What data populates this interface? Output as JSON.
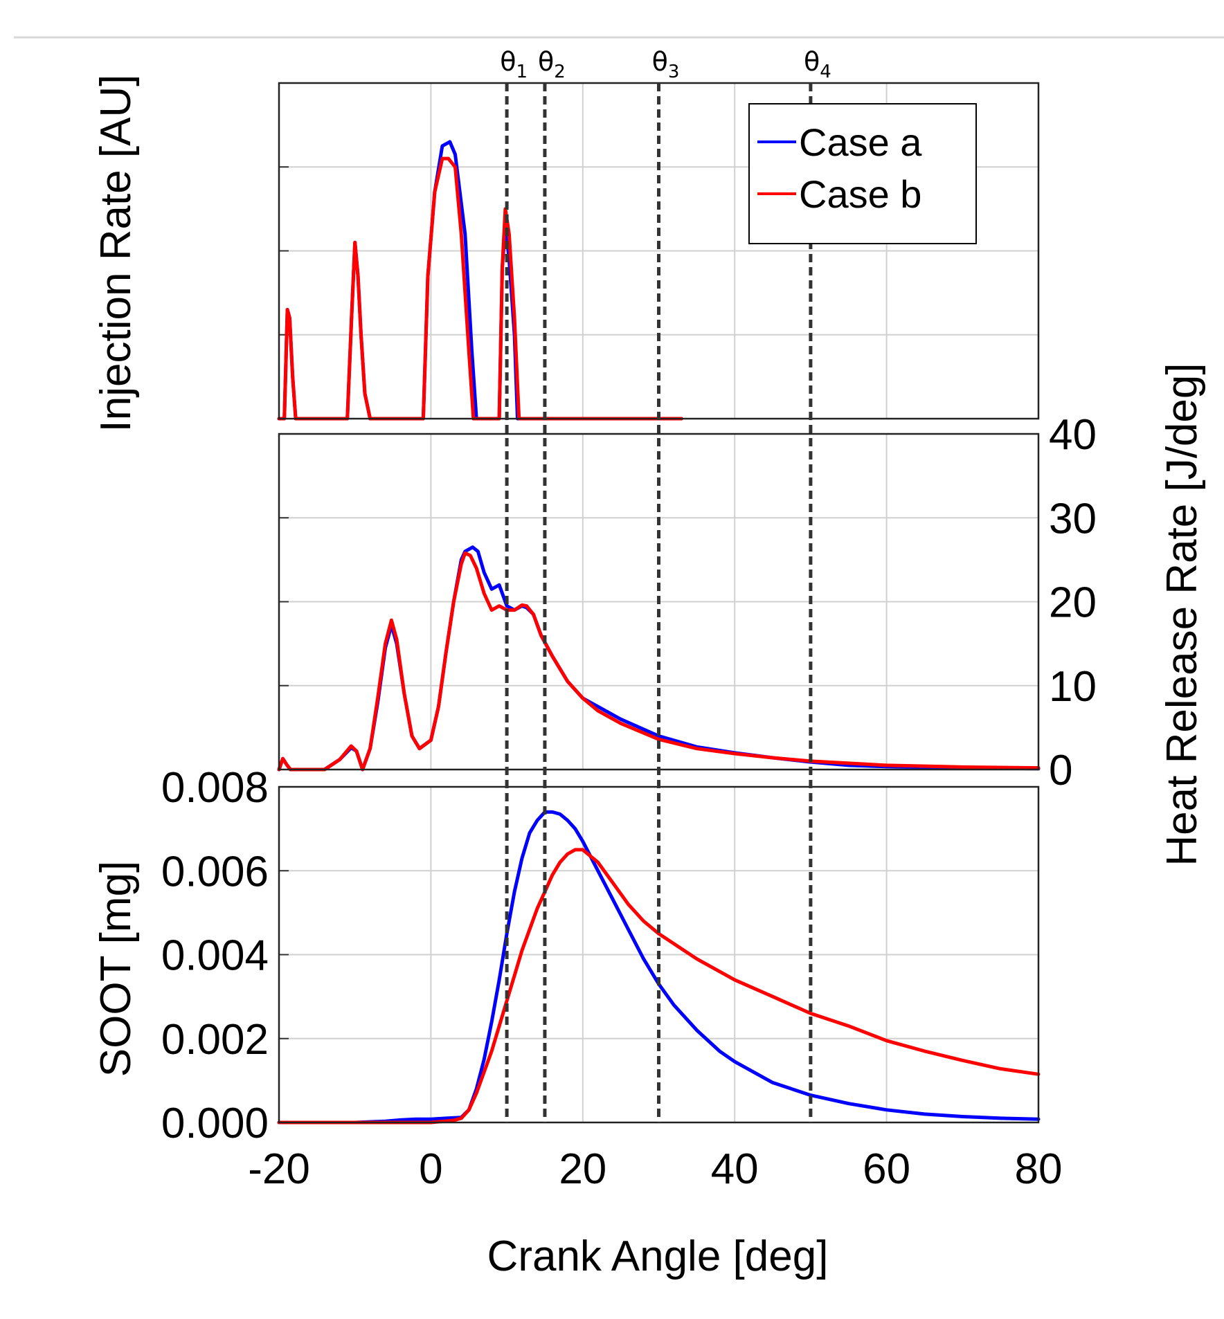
{
  "chart_data": [
    {
      "type": "line",
      "panel": "injection",
      "ylabel": "Injection Rate [AU]",
      "yticks_labeled": false,
      "xlim": [
        -20,
        80
      ],
      "ylim": [
        0,
        4
      ],
      "series": [
        {
          "name": "Case a",
          "color": "#0000ff",
          "x": [
            -20,
            -19.3,
            -18.9,
            -18.6,
            -18.2,
            -17.8,
            -11,
            -10.4,
            -10,
            -9.6,
            -9.2,
            -8.7,
            -8,
            -1,
            -0.4,
            0.5,
            1.5,
            2.5,
            3.2,
            4.5,
            5.4,
            6,
            9,
            9.4,
            9.8,
            10.3,
            11,
            11.4,
            33
          ],
          "y": [
            0,
            0,
            1.3,
            1.2,
            0.5,
            0,
            0,
            1.3,
            2.1,
            1.7,
            1.0,
            0.3,
            0,
            0,
            1.7,
            2.7,
            3.25,
            3.3,
            3.15,
            2.2,
            0.8,
            0,
            0,
            1.8,
            2.3,
            1.9,
            1.0,
            0,
            0
          ]
        },
        {
          "name": "Case b",
          "color": "#ff0000",
          "x": [
            -20,
            -19.3,
            -18.9,
            -18.6,
            -18.2,
            -17.8,
            -11,
            -10.4,
            -10,
            -9.6,
            -9.2,
            -8.7,
            -8,
            -1,
            -0.4,
            0.5,
            1.5,
            2.3,
            3.2,
            4,
            5,
            5.6,
            9,
            9.4,
            9.8,
            10.3,
            11,
            11.6,
            33
          ],
          "y": [
            0,
            0,
            1.3,
            1.2,
            0.5,
            0,
            0,
            1.3,
            2.1,
            1.7,
            1.0,
            0.3,
            0,
            0,
            1.7,
            2.7,
            3.1,
            3.1,
            3.0,
            2.2,
            0.8,
            0,
            0,
            1.8,
            2.5,
            2.2,
            1.2,
            0,
            0
          ]
        }
      ],
      "legend": {
        "placement": "top-right",
        "entries": [
          "Case a",
          "Case b"
        ]
      },
      "markers": [
        {
          "label": "θ",
          "sub": "1",
          "x": 10
        },
        {
          "label": "θ",
          "sub": "2",
          "x": 15
        },
        {
          "label": "θ",
          "sub": "3",
          "x": 30
        },
        {
          "label": "θ",
          "sub": "4",
          "x": 50
        }
      ]
    },
    {
      "type": "line",
      "panel": "heat-release",
      "ylabel": "Heat Release Rate [J/deg]",
      "xlim": [
        -20,
        80
      ],
      "ylim": [
        0,
        40
      ],
      "yticks": [
        0,
        10,
        20,
        30,
        40
      ],
      "series": [
        {
          "name": "Case a",
          "color": "#0000ff",
          "x": [
            -20,
            -19.5,
            -19,
            -18.5,
            -17,
            -14,
            -12,
            -10.5,
            -9.8,
            -9,
            -8,
            -7,
            -6,
            -5.2,
            -4.5,
            -3.5,
            -2.5,
            -1.5,
            0,
            1,
            2,
            3,
            4,
            4.5,
            5.5,
            6.2,
            7,
            8,
            9,
            10,
            11,
            12,
            12.6,
            13.5,
            14.5,
            16,
            18,
            20,
            22,
            25,
            30,
            35,
            40,
            45,
            50,
            55,
            60,
            70,
            80
          ],
          "y": [
            0,
            1.3,
            0.6,
            0,
            0,
            0,
            1.2,
            2.6,
            2.2,
            0,
            2.5,
            8,
            14.5,
            17.2,
            15,
            9,
            4,
            2.5,
            3.5,
            7.5,
            14,
            20,
            25,
            26,
            26.5,
            26,
            23.5,
            21.5,
            22,
            19.5,
            19,
            19.5,
            19.3,
            18.5,
            16,
            13.5,
            10.5,
            8.5,
            7.5,
            6,
            4.0,
            2.7,
            2.0,
            1.4,
            0.9,
            0.5,
            0.35,
            0.2,
            0.1
          ]
        },
        {
          "name": "Case b",
          "color": "#ff0000",
          "x": [
            -20,
            -19.5,
            -19,
            -18.5,
            -17,
            -14,
            -12,
            -10.5,
            -9.8,
            -9,
            -8,
            -7,
            -6,
            -5.2,
            -4.5,
            -3.5,
            -2.5,
            -1.5,
            0,
            1,
            2,
            3,
            4,
            4.5,
            5.2,
            6,
            7,
            8,
            9,
            10,
            11,
            12,
            12.6,
            13.5,
            14.5,
            16,
            18,
            20,
            22,
            25,
            30,
            35,
            40,
            45,
            50,
            55,
            60,
            70,
            80
          ],
          "y": [
            0,
            1.3,
            0.6,
            0,
            0,
            0,
            1.2,
            2.8,
            2.2,
            0,
            2.5,
            8.5,
            15,
            17.8,
            15.5,
            9,
            4,
            2.5,
            3.5,
            7.5,
            14,
            20,
            24.5,
            25.8,
            25.5,
            24,
            21,
            19,
            19.5,
            19,
            19,
            19.6,
            19.5,
            18.5,
            16,
            13.5,
            10.5,
            8.5,
            7,
            5.5,
            3.6,
            2.5,
            1.9,
            1.4,
            1.0,
            0.75,
            0.5,
            0.3,
            0.2
          ]
        }
      ]
    },
    {
      "type": "line",
      "panel": "soot",
      "ylabel": "SOOT [mg]",
      "xlabel": "Crank Angle [deg]",
      "xlim": [
        -20,
        80
      ],
      "ylim": [
        0,
        0.008
      ],
      "xticks": [
        -20,
        0,
        20,
        40,
        60,
        80
      ],
      "yticks": [
        "0.000",
        "0.002",
        "0.004",
        "0.006",
        "0.008"
      ],
      "series": [
        {
          "name": "Case a",
          "color": "#0000ff",
          "x": [
            -20,
            -10,
            -6,
            -4,
            -2,
            0,
            2,
            4,
            5,
            6,
            7,
            8,
            9,
            10,
            11,
            12,
            13,
            14,
            15,
            16,
            17,
            18,
            19,
            20,
            22,
            24,
            26,
            28,
            30,
            32,
            35,
            38,
            40,
            45,
            50,
            55,
            60,
            65,
            70,
            75,
            80
          ],
          "y": [
            0,
            0,
            3e-05,
            6e-05,
            8e-05,
            8e-05,
            0.0001,
            0.00012,
            0.0003,
            0.0008,
            0.0015,
            0.0024,
            0.0034,
            0.0045,
            0.0055,
            0.0063,
            0.0069,
            0.0072,
            0.0074,
            0.0074,
            0.00735,
            0.0072,
            0.007,
            0.0067,
            0.006,
            0.0053,
            0.0046,
            0.0039,
            0.0033,
            0.0028,
            0.0022,
            0.0017,
            0.00145,
            0.00095,
            0.00065,
            0.00045,
            0.0003,
            0.0002,
            0.00014,
            0.0001,
            8e-05
          ]
        },
        {
          "name": "Case b",
          "color": "#ff0000",
          "x": [
            -20,
            -10,
            -4,
            0,
            3,
            4,
            5,
            6,
            7,
            8,
            9,
            10,
            11,
            12,
            13,
            14,
            15,
            16,
            17,
            18,
            19,
            20,
            22,
            24,
            26,
            28,
            30,
            35,
            40,
            45,
            50,
            55,
            60,
            65,
            70,
            75,
            80
          ],
          "y": [
            0,
            0,
            0,
            0,
            5e-05,
            0.0001,
            0.0003,
            0.0007,
            0.0012,
            0.0017,
            0.0023,
            0.0029,
            0.0035,
            0.0041,
            0.0046,
            0.0051,
            0.0055,
            0.0059,
            0.0062,
            0.0064,
            0.0065,
            0.0065,
            0.0062,
            0.0057,
            0.0052,
            0.0048,
            0.0045,
            0.0039,
            0.0034,
            0.003,
            0.0026,
            0.0023,
            0.00195,
            0.0017,
            0.00148,
            0.00128,
            0.00115
          ]
        }
      ]
    }
  ]
}
